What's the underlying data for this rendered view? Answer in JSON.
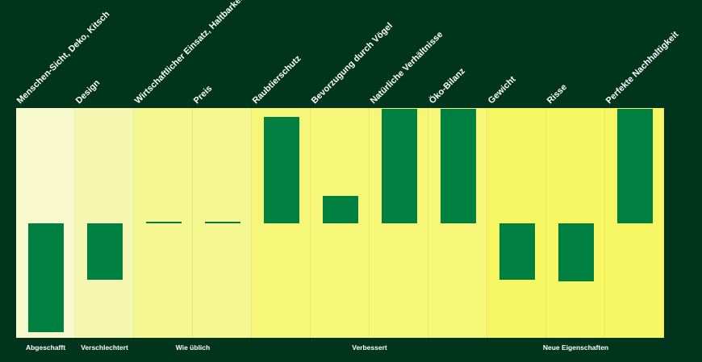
{
  "chart_data": {
    "type": "bar",
    "title": "",
    "xlabel": "",
    "ylabel": "",
    "ylim": [
      -1,
      1
    ],
    "grid": false,
    "categories": [
      "Menschen-Sicht, Deko, Kitsch",
      "Design",
      "Wirtschaftlicher Einsatz, Haltbarkeit",
      "Preis",
      "Raubtierschutz",
      "Bevorzugung durch Vögel",
      "Natürliche Verhältnisse",
      "Öko-Bilanz",
      "Gewicht",
      "Risse",
      "Perfekte Nachhaltigkeit"
    ],
    "values": [
      -0.95,
      -0.49,
      0.01,
      0.01,
      0.93,
      0.24,
      1.0,
      1.0,
      -0.49,
      -0.51,
      1.0
    ],
    "groups": [
      {
        "label": "Abgeschafft",
        "start": 0,
        "end": 0,
        "color": "#f7f9cc"
      },
      {
        "label": "Verschlechtert",
        "start": 1,
        "end": 1,
        "color": "#f5f7b0"
      },
      {
        "label": "Wie üblich",
        "start": 2,
        "end": 3,
        "color": "#f5f791"
      },
      {
        "label": "Verbessert",
        "start": 4,
        "end": 7,
        "color": "#f6f779"
      },
      {
        "label": "Neue Eigenschaften",
        "start": 8,
        "end": 10,
        "color": "#f6f762"
      }
    ],
    "bar_color": "#008040"
  }
}
